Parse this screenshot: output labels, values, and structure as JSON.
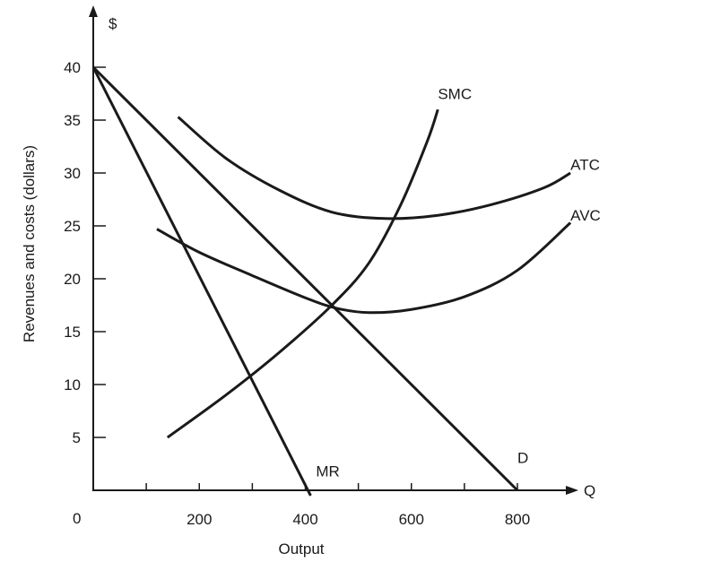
{
  "chart_data": {
    "type": "line",
    "title": "",
    "xlabel": "Output",
    "ylabel": "Revenues and costs (dollars)",
    "y_axis_unit_label": "$",
    "x_axis_end_label": "Q",
    "origin_label": "0",
    "xlim": [
      0,
      900
    ],
    "ylim": [
      0,
      40
    ],
    "x_ticks": [
      100,
      200,
      300,
      400,
      500,
      600,
      700,
      800
    ],
    "x_tick_labels": [
      {
        "value": 200,
        "label": "200"
      },
      {
        "value": 400,
        "label": "400"
      },
      {
        "value": 600,
        "label": "600"
      },
      {
        "value": 800,
        "label": "800"
      }
    ],
    "y_tick_labels": [
      {
        "value": 5,
        "label": "5"
      },
      {
        "value": 10,
        "label": "10"
      },
      {
        "value": 15,
        "label": "15"
      },
      {
        "value": 20,
        "label": "20"
      },
      {
        "value": 25,
        "label": "25"
      },
      {
        "value": 30,
        "label": "30"
      },
      {
        "value": 35,
        "label": "35"
      },
      {
        "value": 40,
        "label": "40"
      }
    ],
    "grid": false,
    "line_color": "#1a1a1a",
    "series": [
      {
        "name": "D",
        "x": [
          0,
          800
        ],
        "y": [
          40,
          0
        ]
      },
      {
        "name": "MR",
        "x": [
          0,
          410
        ],
        "y": [
          40,
          -0.5
        ]
      },
      {
        "name": "SMC",
        "x": [
          140,
          250,
          350,
          450,
          520,
          580,
          630,
          650
        ],
        "y": [
          5,
          9,
          13,
          17.5,
          21.5,
          27,
          33,
          36
        ]
      },
      {
        "name": "ATC",
        "x": [
          160,
          250,
          350,
          450,
          550,
          650,
          750,
          850,
          900
        ],
        "y": [
          35.3,
          31.4,
          28.4,
          26.3,
          25.7,
          26,
          27,
          28.6,
          30
        ]
      },
      {
        "name": "AVC",
        "x": [
          120,
          200,
          300,
          400,
          460,
          520,
          600,
          700,
          800,
          900
        ],
        "y": [
          24.7,
          22.5,
          20.3,
          18.2,
          17.2,
          16.8,
          17.1,
          18.3,
          20.8,
          25.3
        ]
      }
    ],
    "series_labels": [
      {
        "series": "SMC",
        "text": "SMC",
        "x": 650,
        "y": 37
      },
      {
        "series": "ATC",
        "text": "ATC",
        "x": 900,
        "y": 30.3
      },
      {
        "series": "AVC",
        "text": "AVC",
        "x": 900,
        "y": 25.5
      },
      {
        "series": "MR",
        "text": "MR",
        "x": 420,
        "y": 1.3
      },
      {
        "series": "D",
        "text": "D",
        "x": 800,
        "y": 2.6
      }
    ]
  }
}
